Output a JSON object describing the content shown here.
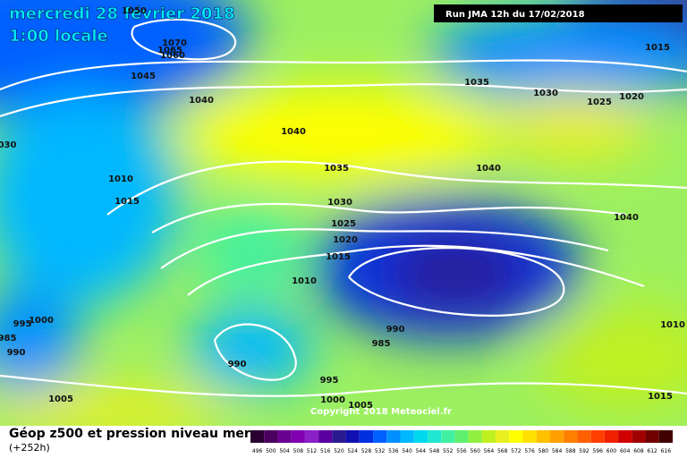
{
  "header": {
    "title": "mercredi 28 février 2018",
    "time": "1:00 locale",
    "run": "Run JMA 12h du 17/02/2018"
  },
  "isobar_labels": [
    "1050",
    "1070",
    "1065",
    "1060",
    "1045",
    "1040",
    "1035",
    "1030",
    "1020",
    "1025",
    "1015",
    "1040",
    "1035",
    "1040",
    "030",
    "1010",
    "1015",
    "1030",
    "1025",
    "1020",
    "1015",
    "1010",
    "1040",
    "1000",
    "995",
    "985",
    "990",
    "990",
    "985",
    "990",
    "995",
    "1000",
    "1005",
    "1005",
    "1010",
    "1015"
  ],
  "copyright": "Copyright 2018 Meteociel.fr",
  "legend": {
    "title": "Géop z500 et pression niveau mer",
    "lead": "(+252h)",
    "labels": [
      496,
      500,
      504,
      508,
      512,
      516,
      520,
      524,
      528,
      532,
      536,
      540,
      544,
      548,
      552,
      556,
      560,
      564,
      568,
      572,
      576,
      580,
      584,
      588,
      592,
      596,
      600,
      604,
      608,
      612,
      616
    ],
    "colors": [
      "#2a0030",
      "#4b0060",
      "#6a0090",
      "#8000b0",
      "#8c20c8",
      "#5a00a0",
      "#2a1a90",
      "#1010b0",
      "#0030e0",
      "#0060ff",
      "#0090ff",
      "#00b8ff",
      "#00d8f0",
      "#20e8d0",
      "#40f0a0",
      "#60f070",
      "#90f040",
      "#c0f020",
      "#e8f020",
      "#ffff00",
      "#ffe000",
      "#ffc000",
      "#ffa000",
      "#ff8000",
      "#ff6000",
      "#ff4000",
      "#f02000",
      "#d00000",
      "#a00000",
      "#700000",
      "#400000"
    ]
  }
}
